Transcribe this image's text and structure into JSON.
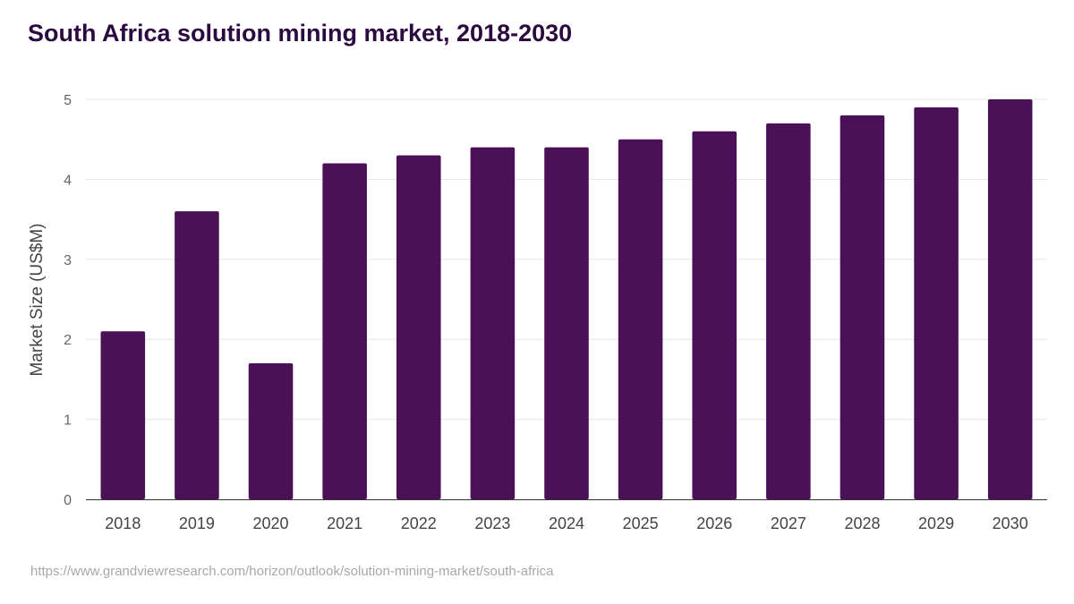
{
  "title": "South Africa solution mining market, 2018-2030",
  "source": "https://www.grandviewresearch.com/horizon/outlook/solution-mining-market/south-africa",
  "colors": {
    "bar": "#4b1157",
    "title": "#2b0b3f",
    "grid": "#e6e6e6"
  },
  "chart_data": {
    "type": "bar",
    "title": "South Africa solution mining market, 2018-2030",
    "xlabel": "",
    "ylabel": "Market Size (US$M)",
    "categories": [
      "2018",
      "2019",
      "2020",
      "2021",
      "2022",
      "2023",
      "2024",
      "2025",
      "2026",
      "2027",
      "2028",
      "2029",
      "2030"
    ],
    "values": [
      2.1,
      3.6,
      1.7,
      4.2,
      4.3,
      4.4,
      4.4,
      4.5,
      4.6,
      4.7,
      4.8,
      4.9,
      5.0
    ],
    "ylim": [
      0,
      5
    ],
    "yticks": [
      "0",
      "1",
      "2",
      "3",
      "4",
      "5"
    ],
    "grid": true,
    "legend": "none"
  }
}
